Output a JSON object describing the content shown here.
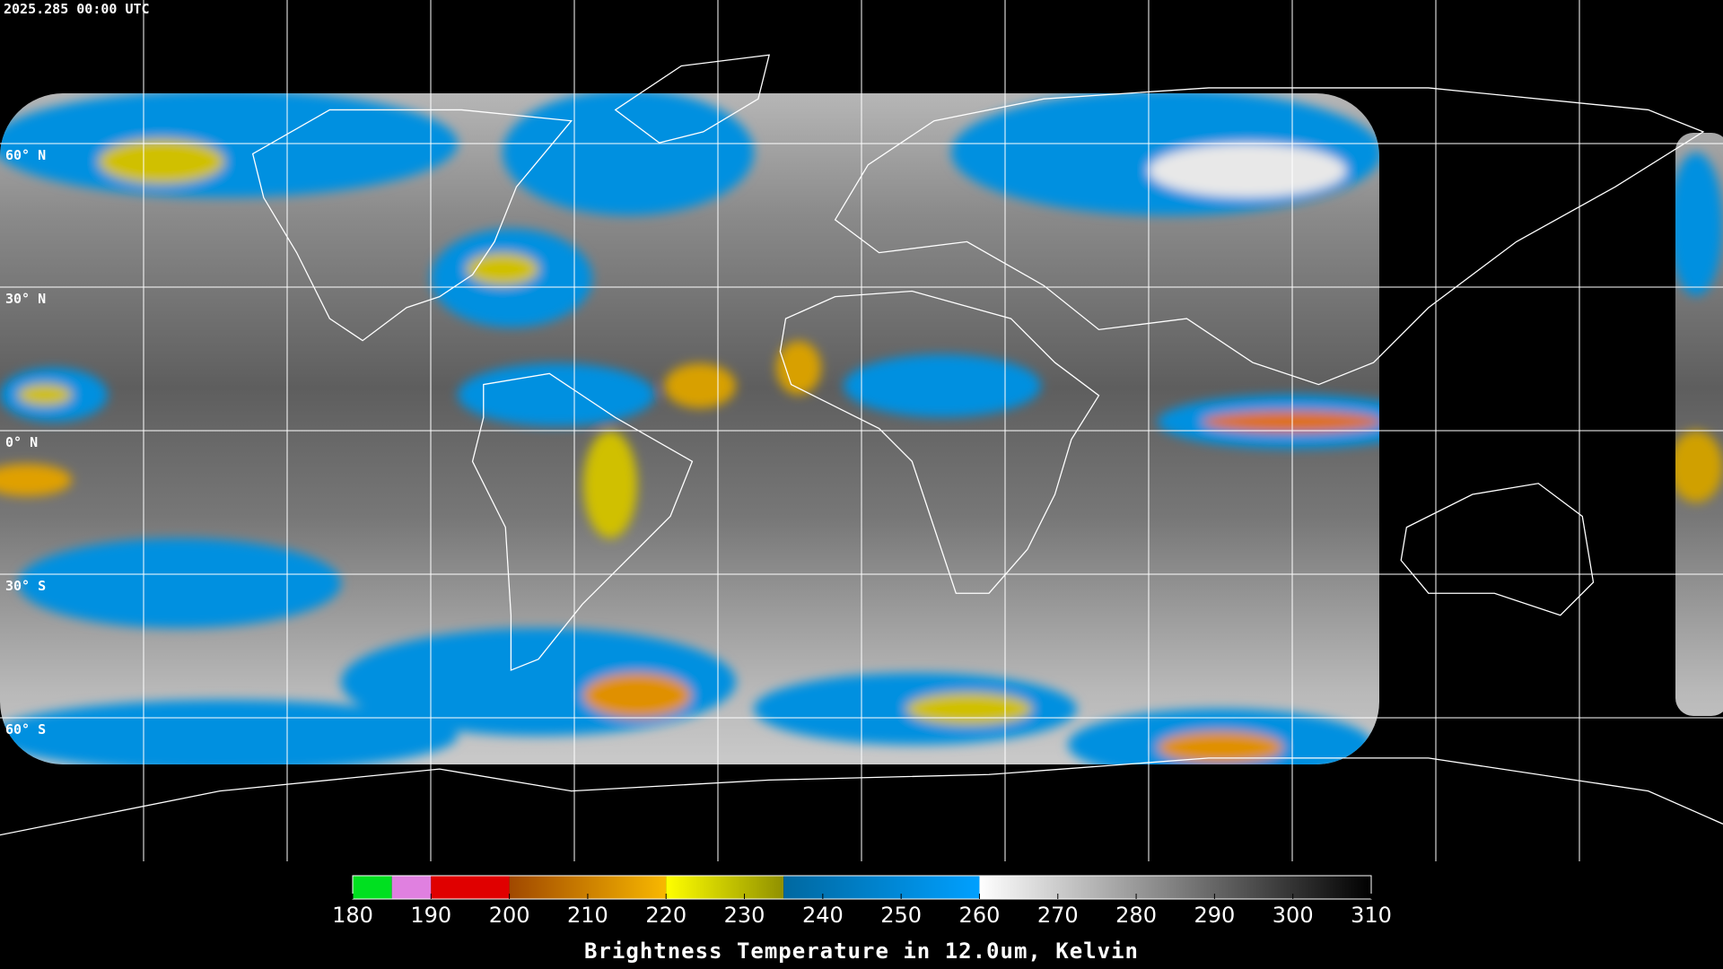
{
  "header": {
    "timestamp": "2025.285 00:00 UTC"
  },
  "map": {
    "lat_labels": [
      "60° N",
      "30° N",
      "0° N",
      "30° S",
      "60° S"
    ]
  },
  "colorbar": {
    "range": [
      180,
      310
    ],
    "ticks": [
      180,
      190,
      200,
      210,
      220,
      230,
      240,
      250,
      260,
      270,
      280,
      290,
      300,
      310
    ],
    "label": "Brightness Temperature in 12.0um, Kelvin",
    "segments": [
      {
        "from": 180,
        "to": 185,
        "color_from": "#00e020",
        "color_to": "#00e020"
      },
      {
        "from": 185,
        "to": 190,
        "color_from": "#e080e0",
        "color_to": "#e080e0"
      },
      {
        "from": 190,
        "to": 200,
        "color_from": "#e00000",
        "color_to": "#e00000"
      },
      {
        "from": 200,
        "to": 220,
        "color_from": "#a04800",
        "color_to": "#f8b800"
      },
      {
        "from": 220,
        "to": 235,
        "color_from": "#ffff00",
        "color_to": "#909000"
      },
      {
        "from": 235,
        "to": 260,
        "color_from": "#0068a0",
        "color_to": "#00a0ff"
      },
      {
        "from": 260,
        "to": 310,
        "color_from": "#ffffff",
        "color_to": "#000000"
      }
    ]
  }
}
